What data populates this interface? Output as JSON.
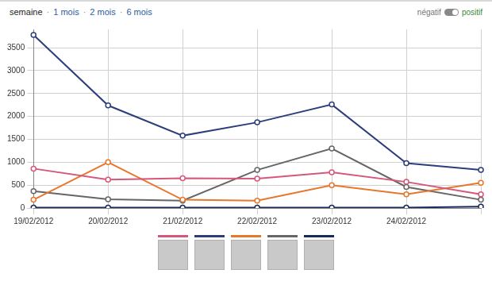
{
  "header": {
    "periods": [
      "semaine",
      "1 mois",
      "2 mois",
      "6 mois"
    ],
    "separator": "·",
    "toggle": {
      "off": "négatif",
      "on": "positif"
    }
  },
  "chart_data": {
    "type": "line",
    "categories": [
      "19/02/2012",
      "20/02/2012",
      "21/02/2012",
      "22/02/2012",
      "23/02/2012",
      "24/02/2012",
      null
    ],
    "series": [
      {
        "color": "#d6577a",
        "marker": "circle",
        "line_style": "solid",
        "values": [
          860,
          620,
          650,
          640,
          780,
          570,
          300
        ]
      },
      {
        "color": "#2c3e7b",
        "marker": "circle",
        "line_style": "solid",
        "values": [
          3780,
          2240,
          1580,
          1870,
          2260,
          980,
          830
        ]
      },
      {
        "color": "#e8772e",
        "marker": "circle",
        "line_style": "solid",
        "values": [
          180,
          1000,
          180,
          160,
          500,
          300,
          550
        ]
      },
      {
        "color": "#666666",
        "marker": "circle",
        "line_style": "solid",
        "values": [
          370,
          190,
          160,
          830,
          1300,
          460,
          180
        ]
      },
      {
        "color": "#172a5a",
        "marker": "circle",
        "line_style": "solid",
        "values": [
          10,
          10,
          10,
          10,
          10,
          10,
          30
        ]
      }
    ],
    "ylim": [
      0,
      3900
    ],
    "yticks": [
      0,
      500,
      1000,
      1500,
      2000,
      2500,
      3000,
      3500
    ],
    "grid": true
  }
}
